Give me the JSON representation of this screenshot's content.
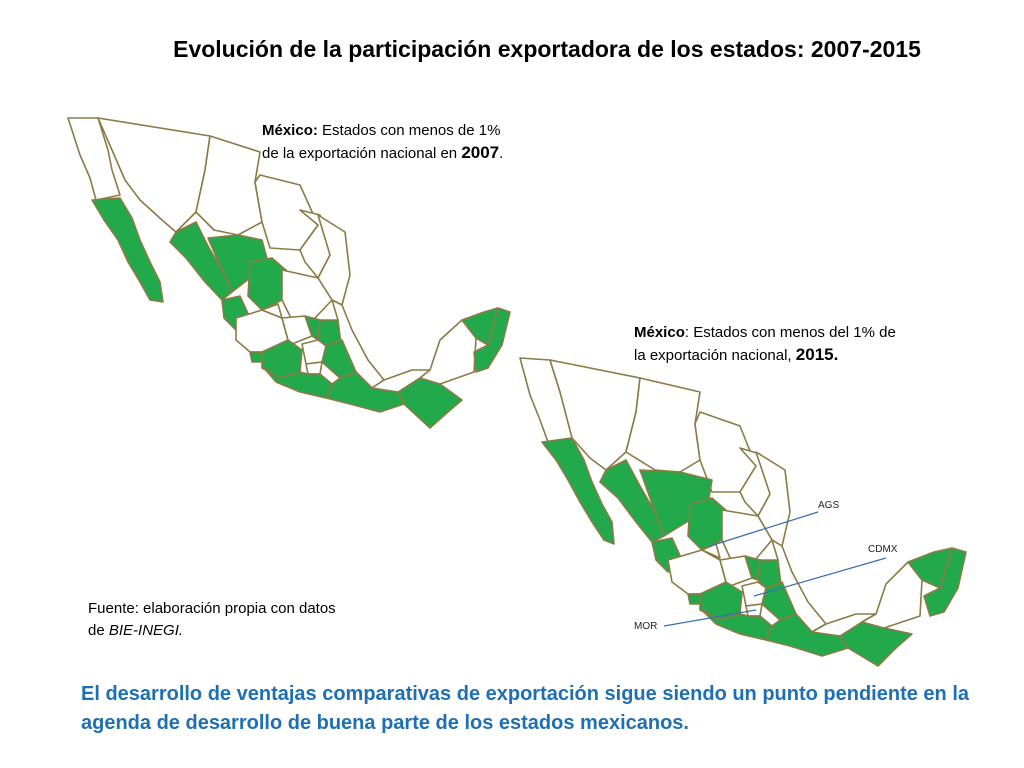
{
  "title": "Evolución de la participación exportadora de los estados: 2007-2015",
  "map2007": {
    "caption_bold": "México:",
    "caption_text_1": " Estados con menos de 1%",
    "caption_text_2": "de la exportación nacional en ",
    "caption_year": "2007",
    "caption_end": "."
  },
  "map2015": {
    "caption_bold": "México",
    "caption_text_1": ": Estados con menos del 1% de",
    "caption_text_2": "la exportación nacional, ",
    "caption_year": "2015.",
    "callouts": {
      "ags": "AGS",
      "cdmx": "CDMX",
      "mor": "MOR"
    }
  },
  "source": {
    "line1": "Fuente: elaboración propia con datos",
    "line2_prefix": "de ",
    "line2_italic": "BIE-INEGI."
  },
  "conclusion": "El desarrollo de ventajas comparativas de exportación sigue siendo un punto pendiente en la agenda de desarrollo de buena parte de los estados mexicanos.",
  "colors": {
    "highlight": "#22a94b",
    "border": "#8a7b45",
    "conclusion_text": "#1f6fb4",
    "callout_line": "#3a6fb0"
  }
}
